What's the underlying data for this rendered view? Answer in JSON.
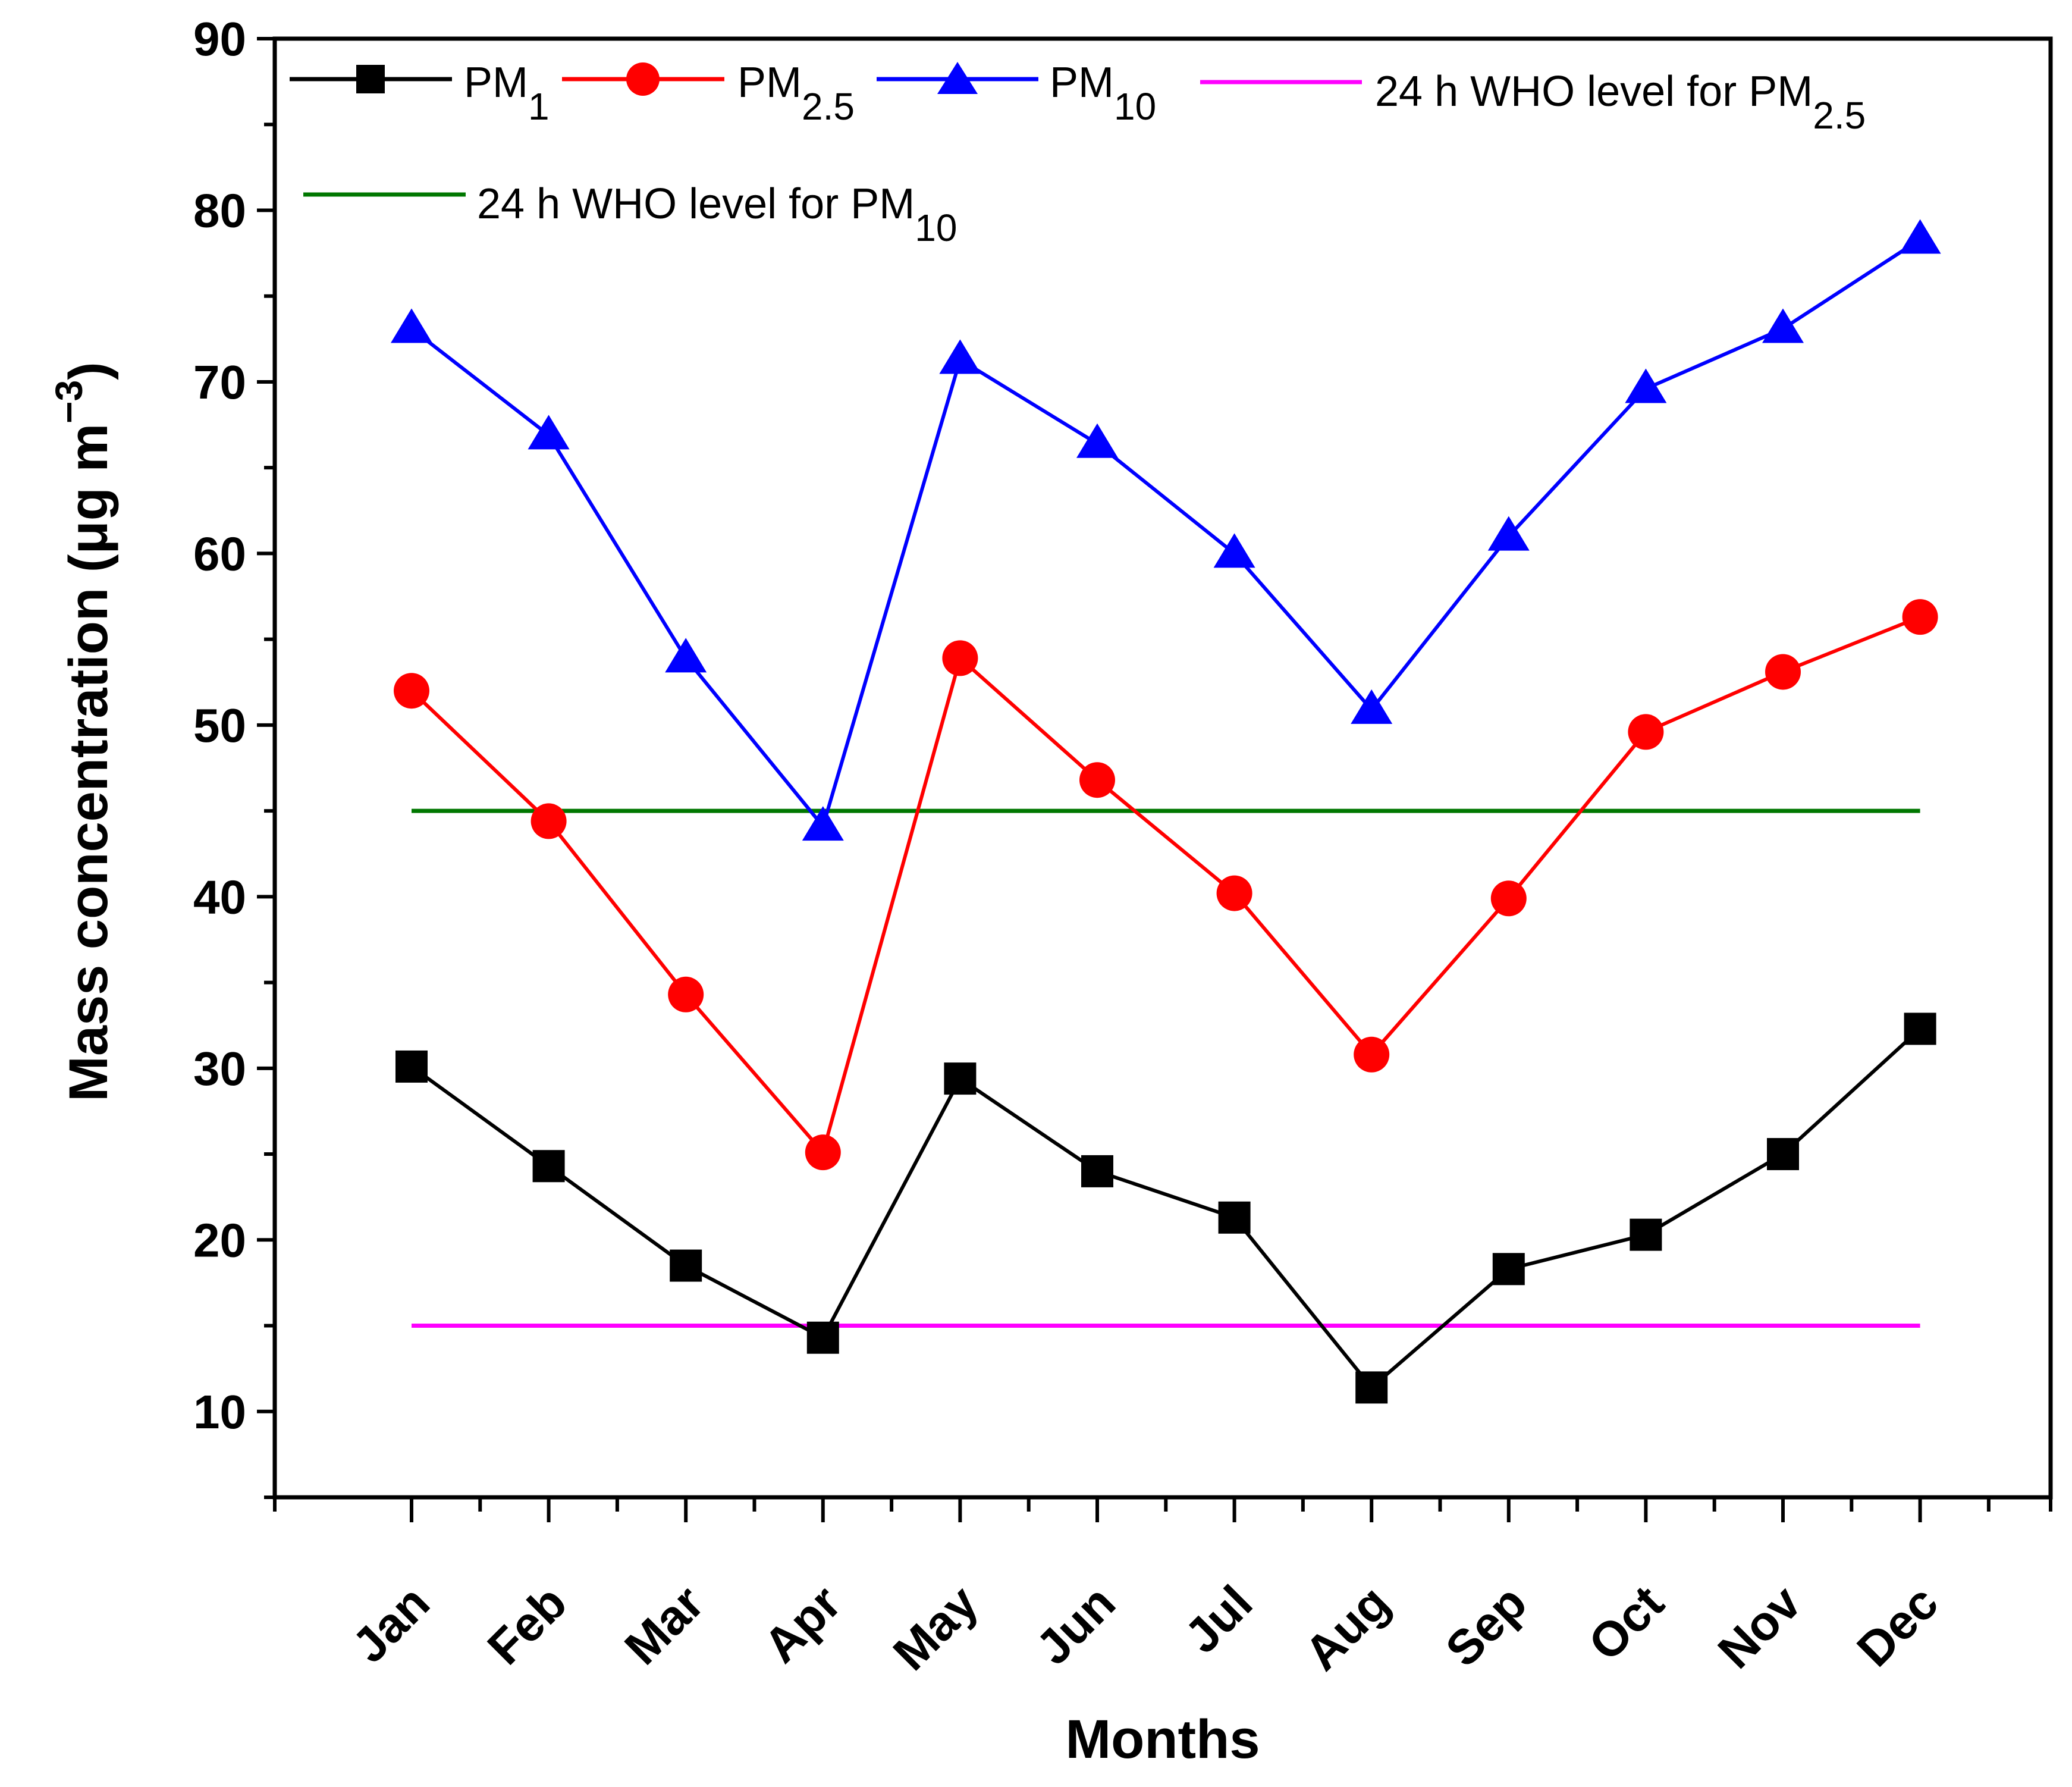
{
  "chart_data": {
    "type": "line",
    "title": "",
    "xlabel": "Months",
    "ylabel_main": "Mass concentration (μg m",
    "ylabel_sup": "−3",
    "ylabel_close": ")",
    "ylim": [
      5,
      90
    ],
    "yticks": [
      10,
      20,
      30,
      40,
      50,
      60,
      70,
      80,
      90
    ],
    "yminor_step": 5,
    "grid": false,
    "legend_position": "top",
    "categories": [
      "Jan",
      "Feb",
      "Mar",
      "Apr",
      "May",
      "Jun",
      "Jul",
      "Aug",
      "Sep",
      "Oct",
      "Nov",
      "Dec"
    ],
    "series": [
      {
        "name": "PM1",
        "label_main": "PM",
        "label_sub": "1",
        "color": "#000000",
        "marker": "square",
        "values": [
          30.1,
          24.3,
          18.5,
          14.3,
          29.4,
          24.0,
          21.3,
          11.4,
          18.3,
          20.3,
          25.0,
          32.3
        ]
      },
      {
        "name": "PM2.5",
        "label_main": "PM",
        "label_sub": "2.5",
        "color": "#ff0000",
        "marker": "circle",
        "values": [
          52.0,
          44.4,
          34.3,
          25.1,
          53.9,
          46.8,
          40.2,
          30.8,
          39.9,
          49.6,
          53.1,
          56.3
        ]
      },
      {
        "name": "PM10",
        "label_main": "PM",
        "label_sub": "10",
        "color": "#0000ff",
        "marker": "triangle",
        "values": [
          73.1,
          66.9,
          53.9,
          44.1,
          71.3,
          66.4,
          60.0,
          50.9,
          61.0,
          69.6,
          73.1,
          78.3
        ]
      }
    ],
    "reference_lines": [
      {
        "name": "24 h WHO level for PM2.5",
        "label_main": "24 h WHO level for PM",
        "label_sub": "2.5",
        "value": 15,
        "color": "#ff00ff"
      },
      {
        "name": "24 h WHO level for PM10",
        "label_main": "24 h WHO level for PM",
        "label_sub": "10",
        "value": 45,
        "color": "#007700"
      }
    ]
  }
}
